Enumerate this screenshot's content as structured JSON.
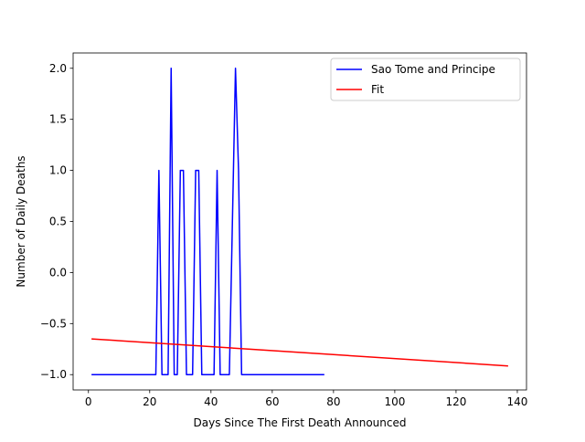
{
  "chart_data": {
    "type": "line",
    "title": "",
    "xlabel": "Days Since The First Death Announced",
    "ylabel": "Number of Daily Deaths",
    "xlim": [
      -5,
      143
    ],
    "ylim": [
      -1.15,
      2.15
    ],
    "x_ticks": [
      0,
      20,
      40,
      60,
      80,
      100,
      120,
      140
    ],
    "y_ticks": [
      -1.0,
      -0.5,
      0.0,
      0.5,
      1.0,
      1.5,
      2.0
    ],
    "x_tick_labels": [
      "0",
      "20",
      "40",
      "60",
      "80",
      "100",
      "120",
      "140"
    ],
    "y_tick_labels": [
      "−1.0",
      "−0.5",
      "0.0",
      "0.5",
      "1.0",
      "1.5",
      "2.0"
    ],
    "grid": false,
    "legend_position": "top-right",
    "series": [
      {
        "name": "Sao Tome and Principe",
        "color": "#0000ff",
        "x": [
          1,
          22,
          23,
          24,
          26,
          27,
          28,
          29,
          30,
          31,
          32,
          34,
          35,
          36,
          37,
          41,
          42,
          43,
          46,
          48,
          49,
          50,
          77
        ],
        "y": [
          -1,
          -1,
          1,
          -1,
          -1,
          2,
          -1,
          -1,
          1,
          1,
          -1,
          -1,
          1,
          1,
          -1,
          -1,
          1,
          -1,
          -1,
          2,
          1,
          -1,
          -1
        ]
      },
      {
        "name": "Fit",
        "color": "#ff0000",
        "x": [
          1,
          137
        ],
        "y": [
          -0.65,
          -0.915
        ]
      }
    ]
  }
}
